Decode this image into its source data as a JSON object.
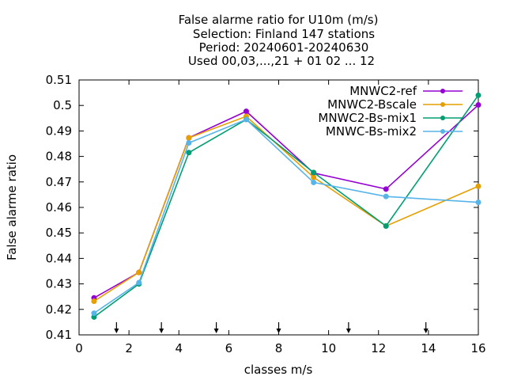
{
  "chart_data": {
    "type": "line",
    "title_lines": [
      "False alarme ratio  for U10m (m/s)",
      "Selection: Finland    147 stations",
      "Period: 20240601-20240630",
      "Used 00,03,...,21 + 01 02 ... 12"
    ],
    "xlabel": "classes m/s",
    "ylabel": "False alarme ratio",
    "xlim": [
      0,
      16
    ],
    "ylim": [
      0.41,
      0.51
    ],
    "x_ticks": [
      "0",
      "2",
      "4",
      "6",
      "8",
      "10",
      "12",
      "14",
      "16"
    ],
    "y_ticks": [
      "0.41",
      "0.42",
      "0.43",
      "0.44",
      "0.45",
      "0.46",
      "0.47",
      "0.48",
      "0.49",
      "0.5",
      "0.51"
    ],
    "class_boundaries": [
      1.5,
      3.3,
      5.5,
      8.0,
      10.8,
      13.9
    ],
    "legend_position": "top-right",
    "grid": false,
    "series": [
      {
        "name": "MNWC2-ref",
        "color": "#9400d3",
        "x": [
          0.6,
          2.4,
          4.4,
          6.7,
          9.4,
          12.3,
          16.0
        ],
        "y": [
          0.4245,
          0.4345,
          0.4873,
          0.4977,
          0.4735,
          0.4672,
          0.5002
        ]
      },
      {
        "name": "MNWC2-Bscale",
        "color": "#e69f00",
        "x": [
          0.6,
          2.4,
          4.4,
          6.7,
          9.4,
          12.3,
          16.0
        ],
        "y": [
          0.4232,
          0.4345,
          0.4873,
          0.4957,
          0.4718,
          0.4527,
          0.4683
        ]
      },
      {
        "name": "MNWC2-Bs-mix1",
        "color": "#009e73",
        "x": [
          0.6,
          2.4,
          4.4,
          6.7,
          9.4,
          12.3,
          16.0
        ],
        "y": [
          0.417,
          0.43,
          0.4815,
          0.4945,
          0.4737,
          0.4527,
          0.504
        ]
      },
      {
        "name": "MNWC-Bs-mix2",
        "color": "#56b4e9",
        "x": [
          0.6,
          2.4,
          4.4,
          6.7,
          9.4,
          12.3,
          16.0
        ],
        "y": [
          0.4185,
          0.4305,
          0.4853,
          0.4945,
          0.4698,
          0.4643,
          0.462
        ]
      }
    ]
  }
}
